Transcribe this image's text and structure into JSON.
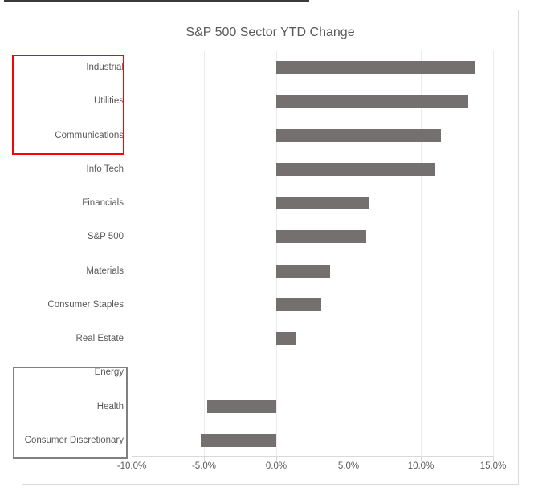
{
  "chart_data": {
    "type": "bar",
    "orientation": "horizontal",
    "title": "S&P 500 Sector YTD Change",
    "categories": [
      "Industrial",
      "Utilities",
      "Communications",
      "Info Tech",
      "Financials",
      "S&P 500",
      "Materials",
      "Consumer Staples",
      "Real Estate",
      "Energy",
      "Health",
      "Consumer Discretionary"
    ],
    "values": [
      13.7,
      13.3,
      11.4,
      11.0,
      6.4,
      6.2,
      3.7,
      3.1,
      1.4,
      0.0,
      -4.8,
      -5.2
    ],
    "value_unit": "percent",
    "xlabel": "",
    "ylabel": "",
    "x_axis": {
      "min": -10,
      "max": 15,
      "tick_values": [
        -10,
        -5,
        0,
        5,
        10,
        15
      ],
      "tick_labels": [
        "-10.0%",
        "-5.0%",
        "0.0%",
        "5.0%",
        "10.0%",
        "15.0%"
      ]
    },
    "grid": true,
    "legend": false,
    "bar_color": "#757070",
    "annotations": [
      {
        "name": "red-highlight-box",
        "shape": "rectangle-outline",
        "color": "#fe0000",
        "border_px": 2,
        "around_categories": [
          "Industrial",
          "Utilities",
          "Communications"
        ]
      },
      {
        "name": "gray-highlight-box",
        "shape": "rectangle-outline",
        "color": "#808080",
        "border_px": 2,
        "around_categories": [
          "Energy",
          "Health",
          "Consumer Discretionary"
        ]
      }
    ]
  },
  "decorations": {
    "top_edge_line_color": "#3a3a3a",
    "frame_border_color": "#d9d9d9",
    "gridline_color": "#ebebeb",
    "text_color": "#595959"
  }
}
